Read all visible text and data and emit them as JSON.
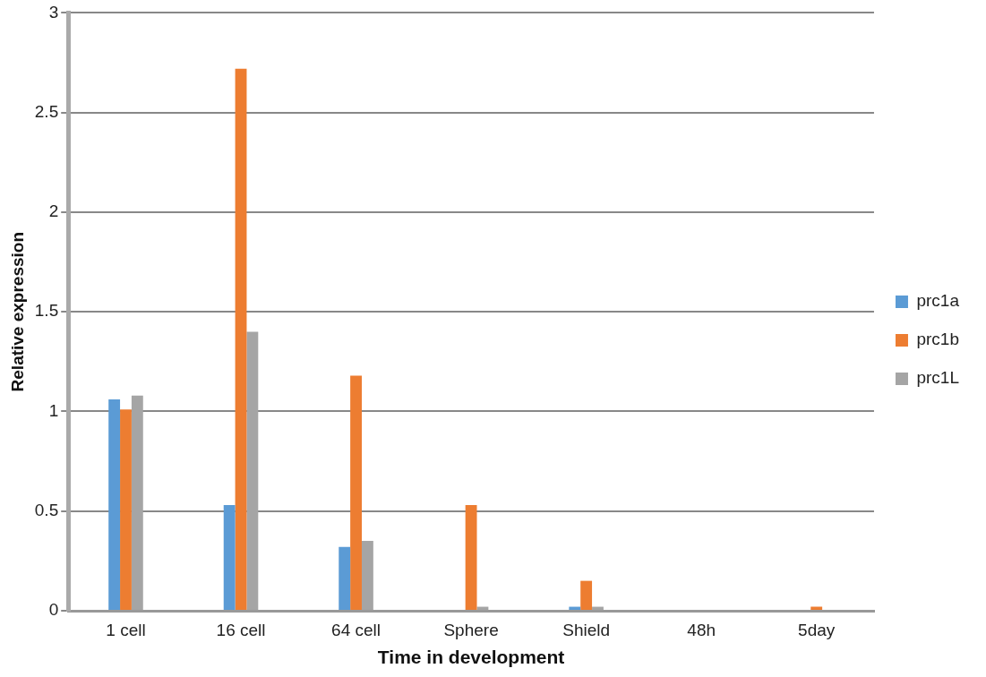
{
  "chart_data": {
    "type": "bar",
    "xlabel": "Time in development",
    "ylabel": "Relative expression",
    "categories": [
      "1 cell",
      "16 cell",
      "64 cell",
      "Sphere",
      "Shield",
      "48h",
      "5day"
    ],
    "series": [
      {
        "name": "prc1a",
        "color": "#5b9bd5",
        "values": [
          1.06,
          0.53,
          0.32,
          0,
          0.02,
          0,
          0
        ]
      },
      {
        "name": "prc1b",
        "color": "#ed7d31",
        "values": [
          1.01,
          2.72,
          1.18,
          0.53,
          0.15,
          0,
          0.02
        ]
      },
      {
        "name": "prc1L",
        "color": "#a5a5a5",
        "values": [
          1.08,
          1.4,
          0.35,
          0.02,
          0.02,
          0,
          0
        ]
      }
    ],
    "ylim": [
      0,
      3
    ],
    "yticks": [
      0,
      0.5,
      1,
      1.5,
      2,
      2.5,
      3
    ],
    "grid": "y",
    "legend": "right"
  }
}
